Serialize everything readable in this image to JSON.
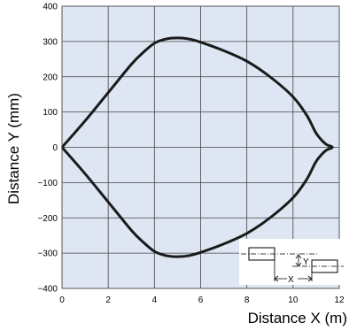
{
  "chart_data": {
    "type": "line",
    "title": "",
    "xlabel": "Distance X (m)",
    "ylabel": "Distance Y (mm)",
    "xlim": [
      0,
      12
    ],
    "ylim": [
      -400,
      400
    ],
    "x_ticks": [
      0,
      2,
      4,
      6,
      8,
      10,
      12
    ],
    "y_ticks": [
      400,
      300,
      200,
      100,
      0,
      -100,
      -200,
      -300,
      -400
    ],
    "y_tick_labels": [
      "400",
      "300",
      "200",
      "100",
      "0",
      "−100",
      "−200",
      "−300",
      "−400"
    ],
    "grid": true,
    "background_color": "#dde6f2",
    "line_color": "#1a1a1a",
    "series": [
      {
        "x": [
          0.0,
          1.0,
          2.0,
          3.0,
          3.5,
          4.0,
          4.5,
          5.0,
          5.5,
          6.0,
          7.0,
          8.0,
          9.0,
          10.0,
          10.6,
          11.0,
          11.4,
          11.7,
          11.4,
          11.0,
          10.6,
          10.0,
          9.0,
          8.0,
          7.0,
          6.0,
          5.5,
          5.0,
          4.5,
          4.0,
          3.5,
          3.0,
          2.0,
          1.0,
          0.0
        ],
        "y": [
          0,
          75,
          155,
          235,
          268,
          295,
          307,
          310,
          307,
          298,
          274,
          244,
          200,
          143,
          90,
          40,
          10,
          0,
          -10,
          -40,
          -90,
          -143,
          -200,
          -244,
          -274,
          -298,
          -307,
          -310,
          -307,
          -295,
          -268,
          -235,
          -155,
          -75,
          0
        ]
      }
    ],
    "inset": {
      "y_label": "Y",
      "x_label": "X"
    }
  }
}
